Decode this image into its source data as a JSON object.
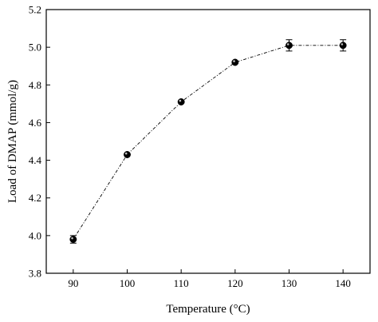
{
  "chart_data": {
    "type": "line",
    "title": "",
    "xlabel": "Temperature (°C)",
    "ylabel": "Load of DMAP (mmol/g)",
    "xlim": [
      85,
      145
    ],
    "ylim": [
      3.8,
      5.2
    ],
    "x_ticks": [
      90,
      100,
      110,
      120,
      130,
      140
    ],
    "x_tick_labels": [
      "90",
      "100",
      "110",
      "120",
      "130",
      "140"
    ],
    "y_ticks": [
      3.8,
      4.0,
      4.2,
      4.4,
      4.6,
      4.8,
      5.0,
      5.2
    ],
    "y_tick_labels": [
      "3.8",
      "4.0",
      "4.2",
      "4.4",
      "4.6",
      "4.8",
      "5.0",
      "5.2"
    ],
    "grid": false,
    "legend": "none",
    "series": [
      {
        "x": [
          90,
          100,
          110,
          120,
          130,
          140
        ],
        "y": [
          3.98,
          4.43,
          4.71,
          4.92,
          5.01,
          5.01
        ],
        "y_error": [
          0.02,
          0.005,
          0.005,
          0.005,
          0.03,
          0.03
        ],
        "marker": "circle",
        "line_style": "dash-dot",
        "color": "#000000"
      }
    ]
  }
}
